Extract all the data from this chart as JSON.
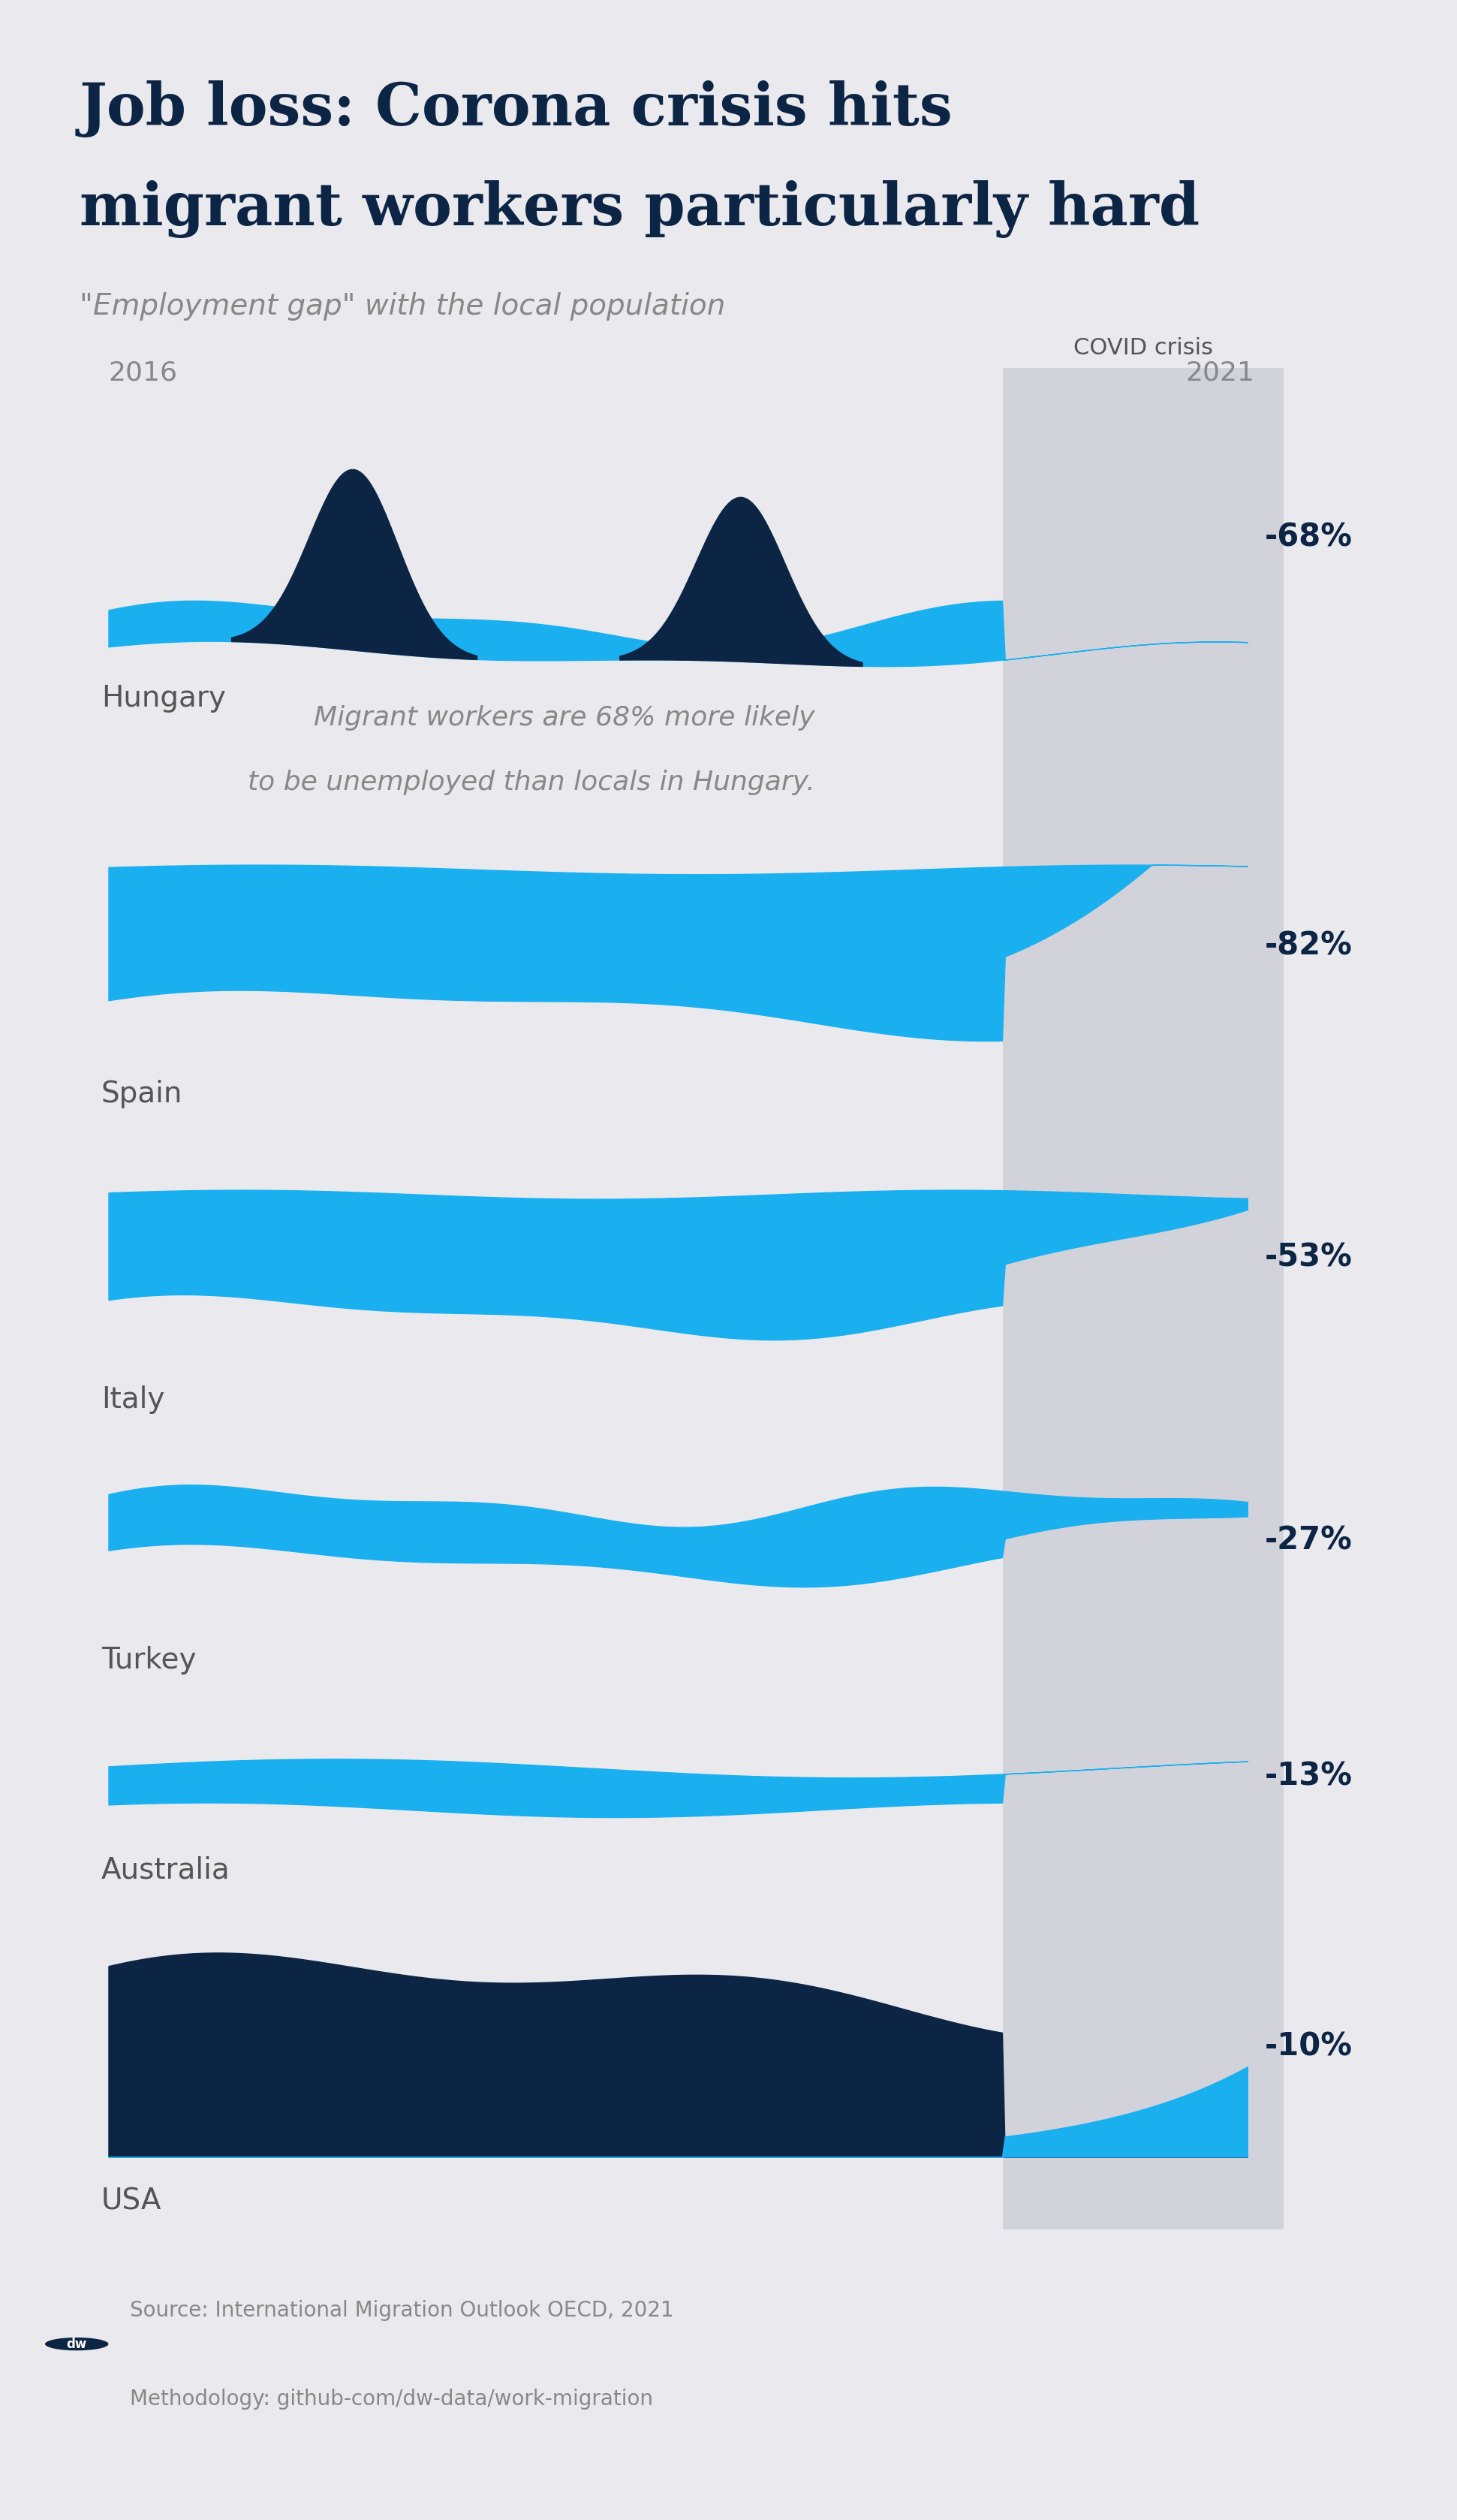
{
  "title_line1": "Job loss: Corona crisis hits",
  "title_line2": "migrant workers particularly hard",
  "subtitle": "\"Employment gap\" with the local population",
  "covid_label": "COVID crisis",
  "year_start": "2016",
  "year_end": "2021",
  "annotation_line1": "Migrant workers are 68% more likely",
  "annotation_line2": "to be unemployed than locals in Hungary.",
  "source_line1": "Source: International Migration Outlook OECD, 2021",
  "source_line2": "Methodology: github-com/dw-data/work-migration",
  "bg_color": "#eaeaee",
  "covid_bg": "#d2d2da",
  "dark_blue": "#0d2545",
  "bright_blue": "#1ab0f0",
  "white": "#ffffff",
  "title_color": "#0d2545",
  "subtitle_color": "#888888",
  "label_color": "#555555",
  "value_color": "#0d2545",
  "countries": [
    "Hungary",
    "Spain",
    "Italy",
    "Turkey",
    "Australia",
    "USA"
  ],
  "values": [
    "-68%",
    "-82%",
    "-53%",
    "-27%",
    "-13%",
    "-10%"
  ]
}
